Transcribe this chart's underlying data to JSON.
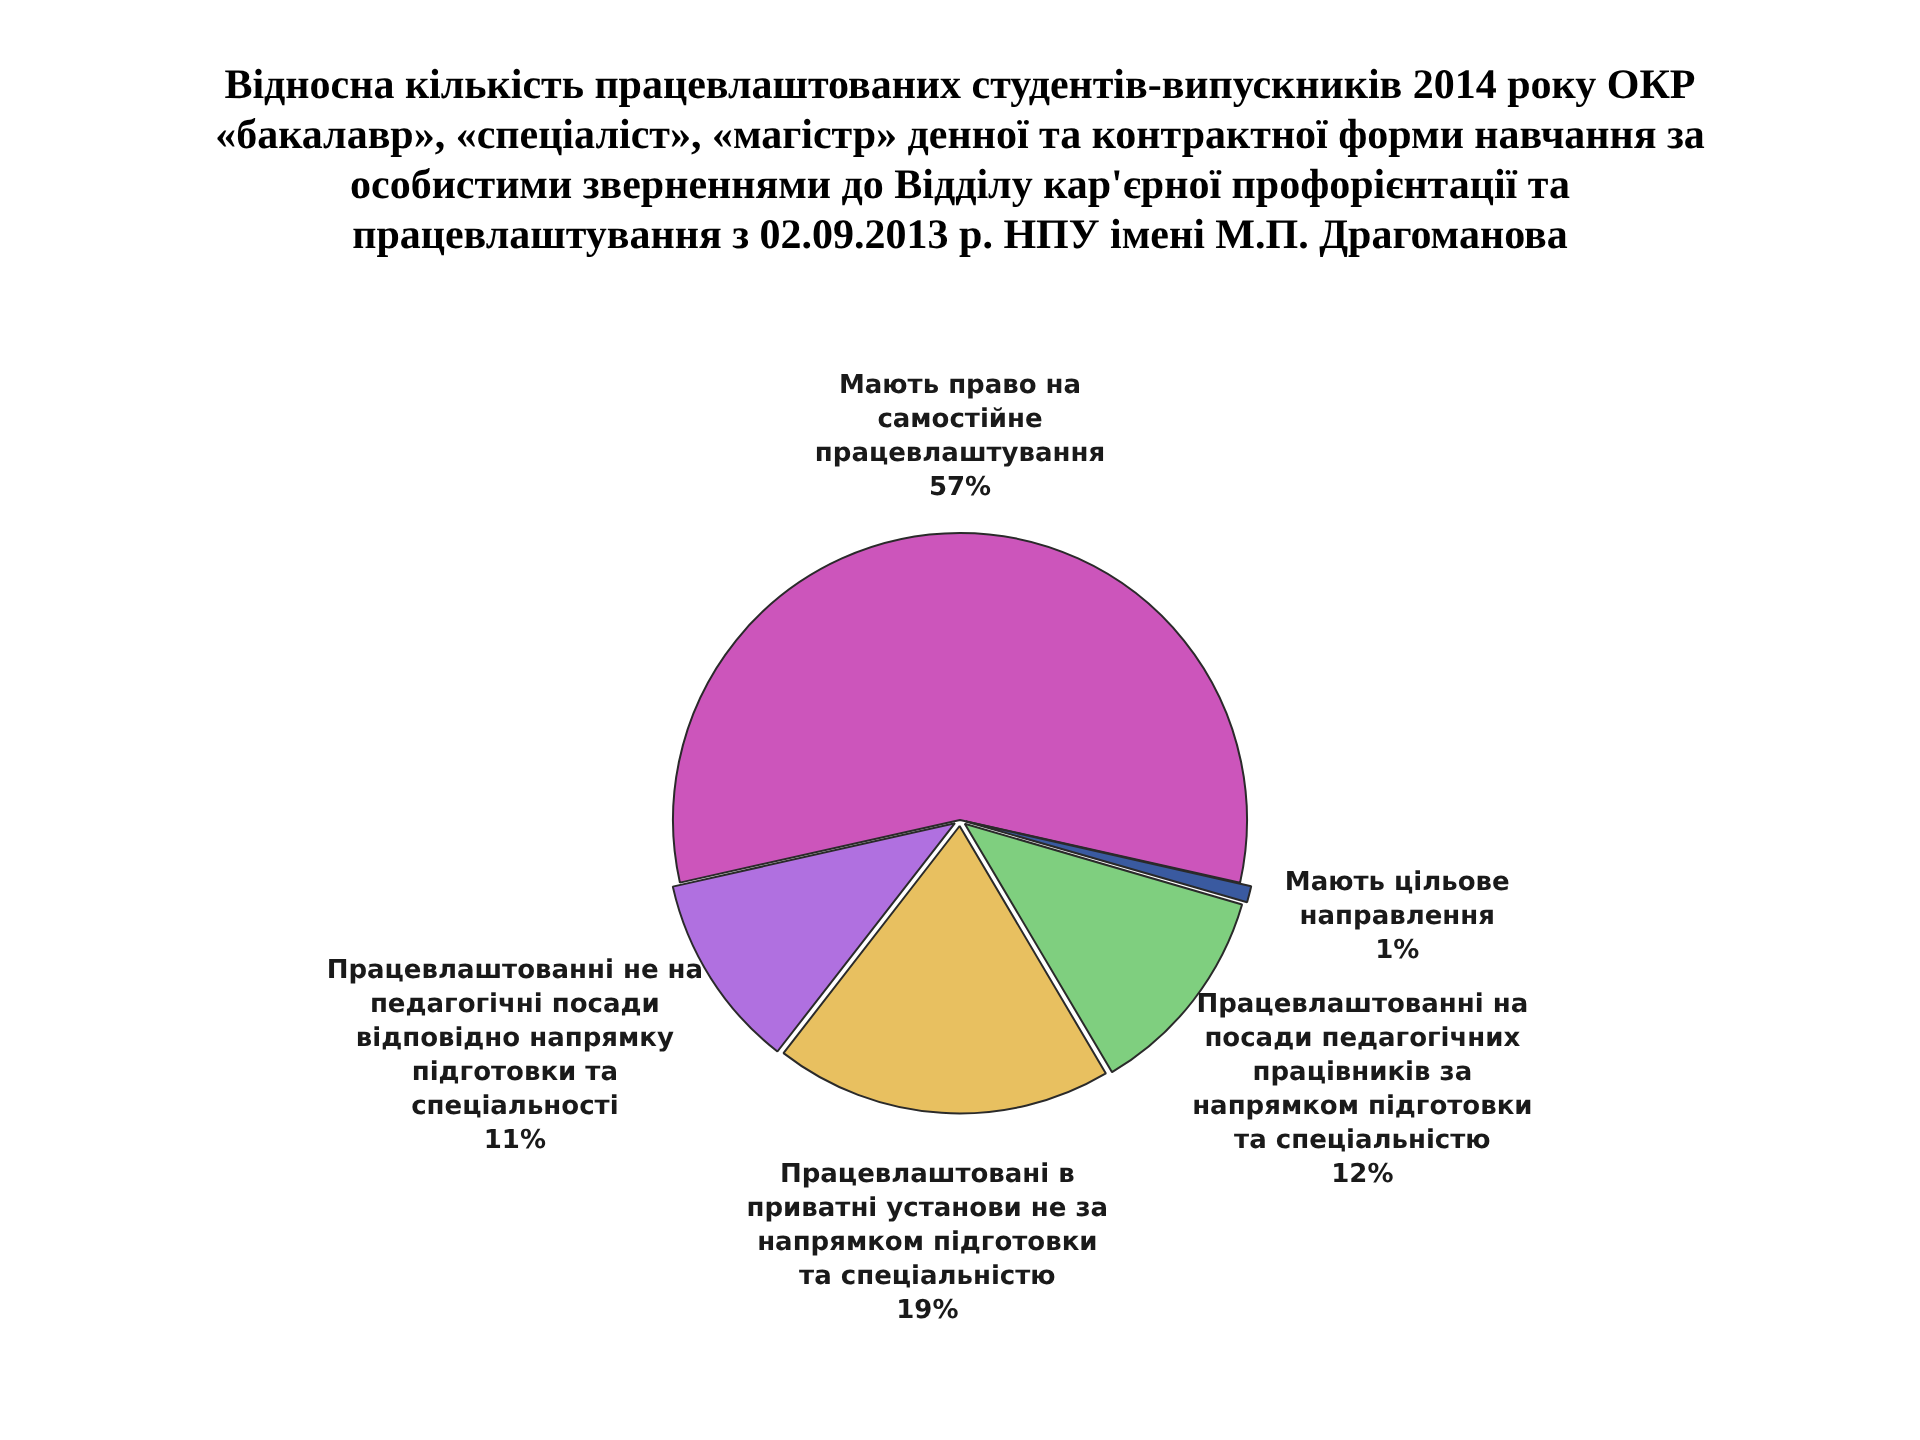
{
  "chart_data": {
    "type": "pie",
    "title": "Відносна кількість працевлаштованих студентів-випускників 2014 року ОКР «бакалавр», «спеціаліст», «магістр» денної та контрактної форми навчання за особистими зверненнями до Відділу кар'єрної профорієнтації та працевлаштування з 02.09.2013 р. НПУ імені М.П. Драгоманова",
    "categories": [
      "Мають право на самостійне працевлаштування",
      "Мають цільове направлення",
      "Працевлаштованні на посади педагогічних працівників за напрямком підготовки та спеціальністю",
      "Працевлаштовані в приватні установи не за напрямком підготовки та спеціальністю",
      "Працевлаштованні не на педагогічні посади відповідно напрямку підготовки та спеціальності"
    ],
    "values": [
      57,
      1,
      12,
      19,
      11
    ],
    "value_labels": [
      "57%",
      "1%",
      "12%",
      "19%",
      "11%"
    ],
    "colors": [
      "#cc55bb",
      "#3a5aa0",
      "#7fcf7f",
      "#e8c060",
      "#b070e0"
    ]
  }
}
